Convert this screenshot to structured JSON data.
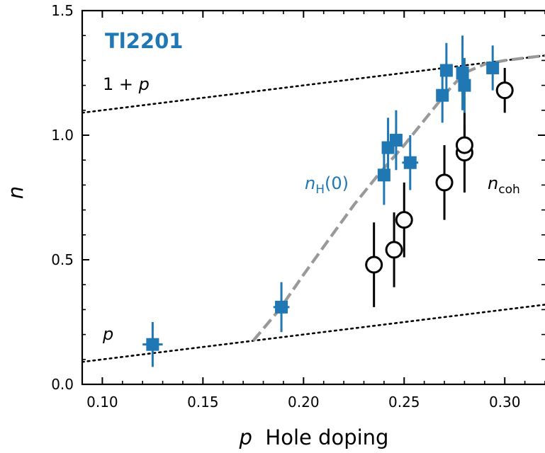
{
  "chart_data": {
    "type": "scatter",
    "title": "Tl2201",
    "xlabel_symbol": "p",
    "xlabel_text": "Hole doping",
    "ylabel": "n",
    "xlim": [
      0.09,
      0.32
    ],
    "ylim": [
      0.0,
      1.5
    ],
    "xticks": [
      0.1,
      0.15,
      0.2,
      0.25,
      0.3
    ],
    "xtick_labels": [
      "0.10",
      "0.15",
      "0.20",
      "0.25",
      "0.30"
    ],
    "yticks": [
      0.0,
      0.5,
      1.0,
      1.5
    ],
    "ytick_labels": [
      "0.0",
      "0.5",
      "1.0",
      "1.5"
    ],
    "grid": false,
    "colors": {
      "hall": "#1f77b4",
      "coh": "#000000",
      "dashed": "#999999",
      "dotted": "#000000"
    },
    "series": [
      {
        "name_symbol": "n",
        "name_subscript": "H",
        "name_suffix": "(0)",
        "marker": "square",
        "points": [
          {
            "x": 0.125,
            "y": 0.16,
            "xerr": 0.005,
            "yerr": 0.09
          },
          {
            "x": 0.189,
            "y": 0.31,
            "xerr": 0.004,
            "yerr": 0.1
          },
          {
            "x": 0.24,
            "y": 0.84,
            "xerr": 0.003,
            "yerr": 0.12
          },
          {
            "x": 0.242,
            "y": 0.95,
            "xerr": 0.003,
            "yerr": 0.12
          },
          {
            "x": 0.246,
            "y": 0.98,
            "xerr": 0.003,
            "yerr": 0.12
          },
          {
            "x": 0.253,
            "y": 0.89,
            "xerr": 0.004,
            "yerr": 0.11
          },
          {
            "x": 0.269,
            "y": 1.16,
            "xerr": 0.003,
            "yerr": 0.11
          },
          {
            "x": 0.271,
            "y": 1.26,
            "xerr": 0.003,
            "yerr": 0.11
          },
          {
            "x": 0.279,
            "y": 1.25,
            "xerr": 0.003,
            "yerr": 0.15
          },
          {
            "x": 0.28,
            "y": 1.2,
            "xerr": 0.003,
            "yerr": 0.11
          },
          {
            "x": 0.294,
            "y": 1.27,
            "xerr": 0.003,
            "yerr": 0.09
          }
        ]
      },
      {
        "name_symbol": "n",
        "name_subscript": "coh",
        "name_suffix": "",
        "marker": "open-circle",
        "points": [
          {
            "x": 0.235,
            "y": 0.48,
            "xerr": 0.004,
            "yerr": 0.17
          },
          {
            "x": 0.245,
            "y": 0.54,
            "xerr": 0.004,
            "yerr": 0.15
          },
          {
            "x": 0.25,
            "y": 0.66,
            "xerr": 0.004,
            "yerr": 0.15
          },
          {
            "x": 0.27,
            "y": 0.81,
            "xerr": 0.004,
            "yerr": 0.15
          },
          {
            "x": 0.28,
            "y": 0.93,
            "xerr": 0.004,
            "yerr": 0.16
          },
          {
            "x": 0.28,
            "y": 0.96,
            "xerr": 0.004,
            "yerr": 0.08
          },
          {
            "x": 0.3,
            "y": 1.18,
            "xerr": 0.004,
            "yerr": 0.09
          }
        ]
      }
    ],
    "lines": [
      {
        "style": "dotted",
        "label": "1 + p",
        "x": [
          0.09,
          0.32
        ],
        "y": [
          1.09,
          1.32
        ]
      },
      {
        "style": "dotted",
        "label": "p",
        "x": [
          0.09,
          0.32
        ],
        "y": [
          0.09,
          0.32
        ]
      },
      {
        "style": "dashed",
        "label": "",
        "x": [
          0.175,
          0.188,
          0.2,
          0.212,
          0.225,
          0.237,
          0.25,
          0.262,
          0.272,
          0.28,
          0.29,
          0.3,
          0.31,
          0.32
        ],
        "y": [
          0.175,
          0.3,
          0.44,
          0.575,
          0.72,
          0.84,
          0.96,
          1.08,
          1.18,
          1.25,
          1.285,
          1.3,
          1.31,
          1.32
        ]
      }
    ]
  }
}
